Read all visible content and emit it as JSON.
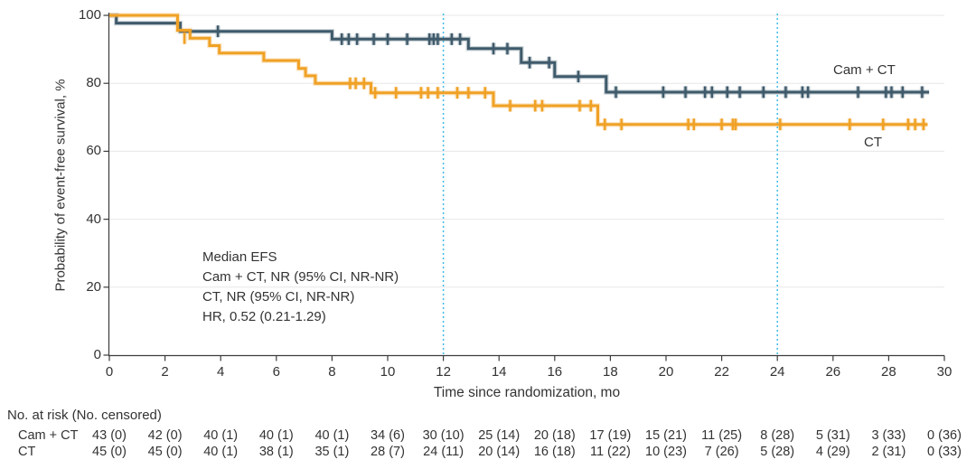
{
  "chart_data": {
    "type": "line",
    "subtype": "kaplan_meier_step_curve",
    "title": "",
    "xlabel": "Time since randomization, mo",
    "ylabel": "Probability of event-free survival, %",
    "xlim": [
      0,
      30
    ],
    "ylim": [
      0,
      100
    ],
    "x_ticks": [
      0,
      2,
      4,
      6,
      8,
      10,
      12,
      14,
      16,
      18,
      20,
      22,
      24,
      26,
      28,
      30
    ],
    "y_ticks": [
      0,
      20,
      40,
      60,
      80,
      100
    ],
    "grid": "horizontal",
    "reference_lines_x_mo": [
      12,
      24
    ],
    "colors": {
      "camct": "#3E5A6B",
      "ct": "#F0A125",
      "reference_line": "#41BBE8",
      "gridline": "#E7E7E9",
      "axis": "#3C3C3C",
      "text": "#333333"
    },
    "annotation_lines": [
      "Median EFS",
      "Cam + CT, NR (95% CI, NR-NR)",
      "CT, NR (95% CI, NR-NR)",
      "HR, 0.52 (0.21-1.29)"
    ],
    "series": [
      {
        "name": "Cam + CT",
        "color": "#3E5A6B",
        "steps": [
          [
            0,
            100
          ],
          [
            0.25,
            97.7
          ],
          [
            2.55,
            95.3
          ],
          [
            8.0,
            93.0
          ],
          [
            12.9,
            90.2
          ],
          [
            14.8,
            86.1
          ],
          [
            16.0,
            82.0
          ],
          [
            17.85,
            77.4
          ],
          [
            29.45,
            77.4
          ]
        ],
        "censor_marks": [
          [
            3.9,
            95.3
          ],
          [
            8.35,
            93.0
          ],
          [
            8.6,
            93.0
          ],
          [
            8.9,
            93.0
          ],
          [
            9.5,
            93.0
          ],
          [
            10.0,
            93.0
          ],
          [
            10.7,
            93.0
          ],
          [
            11.5,
            93.0
          ],
          [
            11.65,
            93.0
          ],
          [
            11.8,
            93.0
          ],
          [
            12.3,
            93.0
          ],
          [
            12.6,
            93.0
          ],
          [
            13.8,
            90.2
          ],
          [
            14.3,
            90.2
          ],
          [
            15.1,
            86.1
          ],
          [
            15.8,
            86.1
          ],
          [
            16.85,
            82.0
          ],
          [
            18.2,
            77.4
          ],
          [
            19.9,
            77.4
          ],
          [
            20.7,
            77.4
          ],
          [
            21.4,
            77.4
          ],
          [
            21.65,
            77.4
          ],
          [
            22.2,
            77.4
          ],
          [
            22.65,
            77.4
          ],
          [
            23.5,
            77.4
          ],
          [
            24.3,
            77.4
          ],
          [
            24.9,
            77.4
          ],
          [
            25.1,
            77.4
          ],
          [
            26.9,
            77.4
          ],
          [
            27.9,
            77.4
          ],
          [
            28.1,
            77.4
          ],
          [
            28.5,
            77.4
          ],
          [
            29.2,
            77.4
          ]
        ]
      },
      {
        "name": "CT",
        "color": "#F0A125",
        "steps": [
          [
            0,
            100
          ],
          [
            2.45,
            95.6
          ],
          [
            2.9,
            93.3
          ],
          [
            3.6,
            91.1
          ],
          [
            3.95,
            88.9
          ],
          [
            5.55,
            86.7
          ],
          [
            6.8,
            84.4
          ],
          [
            7.05,
            82.2
          ],
          [
            7.4,
            80.0
          ],
          [
            9.4,
            77.2
          ],
          [
            13.8,
            73.4
          ],
          [
            17.55,
            67.9
          ],
          [
            29.4,
            67.9
          ]
        ],
        "censor_marks": [
          [
            2.7,
            93.3
          ],
          [
            8.65,
            80.0
          ],
          [
            8.85,
            80.0
          ],
          [
            9.15,
            80.0
          ],
          [
            9.55,
            77.2
          ],
          [
            10.3,
            77.2
          ],
          [
            11.2,
            77.2
          ],
          [
            11.45,
            77.2
          ],
          [
            11.8,
            77.2
          ],
          [
            12.5,
            77.2
          ],
          [
            12.9,
            77.2
          ],
          [
            13.5,
            77.2
          ],
          [
            14.4,
            73.4
          ],
          [
            15.3,
            73.4
          ],
          [
            15.55,
            73.4
          ],
          [
            16.9,
            73.4
          ],
          [
            17.3,
            73.4
          ],
          [
            17.8,
            67.9
          ],
          [
            18.4,
            67.9
          ],
          [
            20.8,
            67.9
          ],
          [
            21.0,
            67.9
          ],
          [
            22.0,
            67.9
          ],
          [
            22.4,
            67.9
          ],
          [
            22.5,
            67.9
          ],
          [
            24.1,
            67.9
          ],
          [
            26.6,
            67.9
          ],
          [
            27.8,
            67.9
          ],
          [
            28.7,
            67.9
          ],
          [
            28.95,
            67.9
          ],
          [
            29.25,
            67.9
          ]
        ]
      }
    ],
    "risk_table": {
      "header": "No. at risk (No. censored)",
      "time_points": [
        0,
        2,
        4,
        6,
        8,
        10,
        12,
        14,
        16,
        18,
        20,
        22,
        24,
        26,
        28,
        30
      ],
      "rows": [
        {
          "label": "Cam + CT",
          "values": [
            "43 (0)",
            "42 (0)",
            "40 (1)",
            "40 (1)",
            "40 (1)",
            "34 (6)",
            "30 (10)",
            "25 (14)",
            "20 (18)",
            "17 (19)",
            "15 (21)",
            "11 (25)",
            "8 (28)",
            "5 (31)",
            "3 (33)",
            "0 (36)"
          ]
        },
        {
          "label": "CT",
          "values": [
            "45 (0)",
            "45 (0)",
            "40 (1)",
            "38 (1)",
            "35 (1)",
            "28 (7)",
            "24 (11)",
            "20 (14)",
            "16 (18)",
            "11 (22)",
            "10 (23)",
            "7 (26)",
            "5 (28)",
            "4 (29)",
            "2 (31)",
            "0 (33)"
          ]
        }
      ]
    }
  }
}
